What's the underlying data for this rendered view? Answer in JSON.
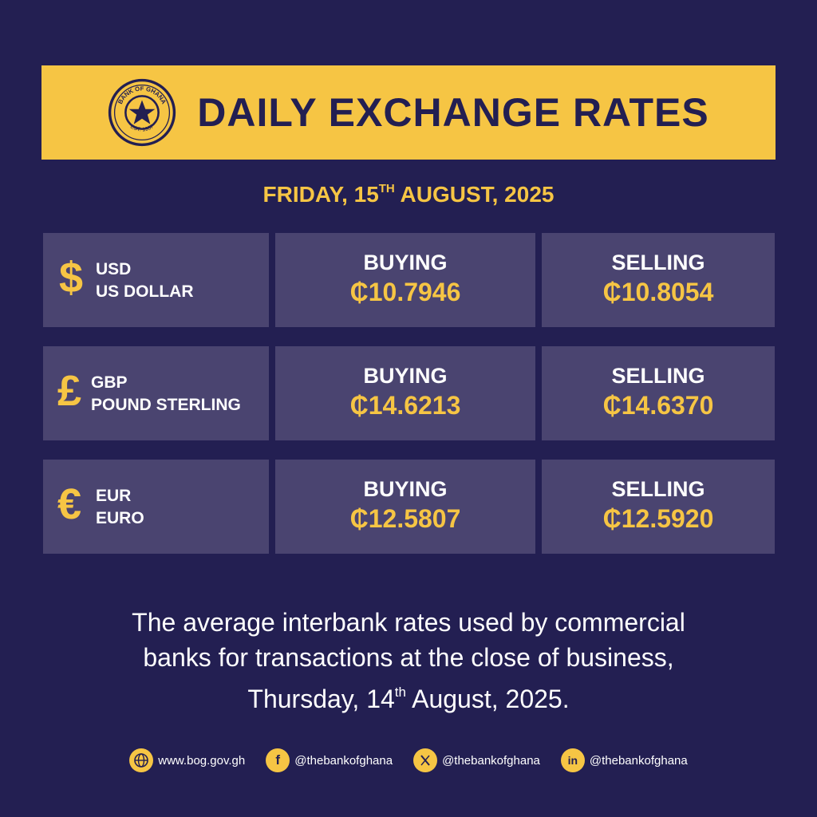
{
  "banner": {
    "title": "DAILY EXCHANGE RATES",
    "seal_text_top": "BANK OF GHANA",
    "seal_text_bottom": "EST. 1957"
  },
  "date": {
    "prefix": "FRIDAY, 15",
    "ordinal": "TH",
    "suffix": " AUGUST, 2025"
  },
  "rates": [
    {
      "symbol": "$",
      "code": "USD",
      "name": "US DOLLAR",
      "buying_label": "BUYING",
      "buying_value": "₵10.7946",
      "selling_label": "SELLING",
      "selling_value": "₵10.8054"
    },
    {
      "symbol": "£",
      "code": "GBP",
      "name": "POUND STERLING",
      "buying_label": "BUYING",
      "buying_value": "₵14.6213",
      "selling_label": "SELLING",
      "selling_value": "₵14.6370"
    },
    {
      "symbol": "€",
      "code": "EUR",
      "name": "EURO",
      "buying_label": "BUYING",
      "buying_value": "₵12.5807",
      "selling_label": "SELLING",
      "selling_value": "₵12.5920"
    }
  ],
  "note": {
    "line1": "The average interbank rates used by commercial",
    "line2": "banks for transactions at the close of business,",
    "line3_prefix": "Thursday, 14",
    "line3_ordinal": "th",
    "line3_suffix": " August, 2025."
  },
  "footer": {
    "website": "www.bog.gov.gh",
    "facebook": "@thebankofghana",
    "x": "@thebankofghana",
    "linkedin": "@thebankofghana"
  },
  "colors": {
    "background": "#231f52",
    "accent": "#f6c544",
    "cell": "#4a4470"
  }
}
